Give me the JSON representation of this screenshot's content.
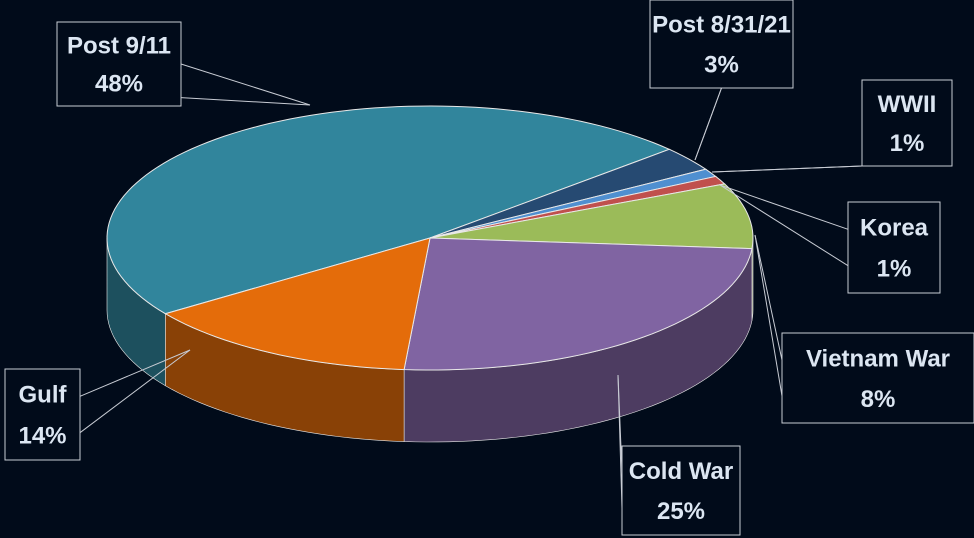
{
  "chart_data": {
    "type": "pie3d",
    "categories": [
      "Post 9/11",
      "Post 8/31/21",
      "WWII",
      "Korea",
      "Vietnam War",
      "Cold War",
      "Gulf"
    ],
    "values": [
      48,
      3,
      1,
      1,
      8,
      25,
      14
    ],
    "value_labels": [
      "48%",
      "3%",
      "1%",
      "1%",
      "8%",
      "25%",
      "14%"
    ],
    "colors": [
      "#31859c",
      "#264a72",
      "#4f8fd0",
      "#c0504d",
      "#9bbb59",
      "#8064a2",
      "#e46c0a"
    ]
  }
}
